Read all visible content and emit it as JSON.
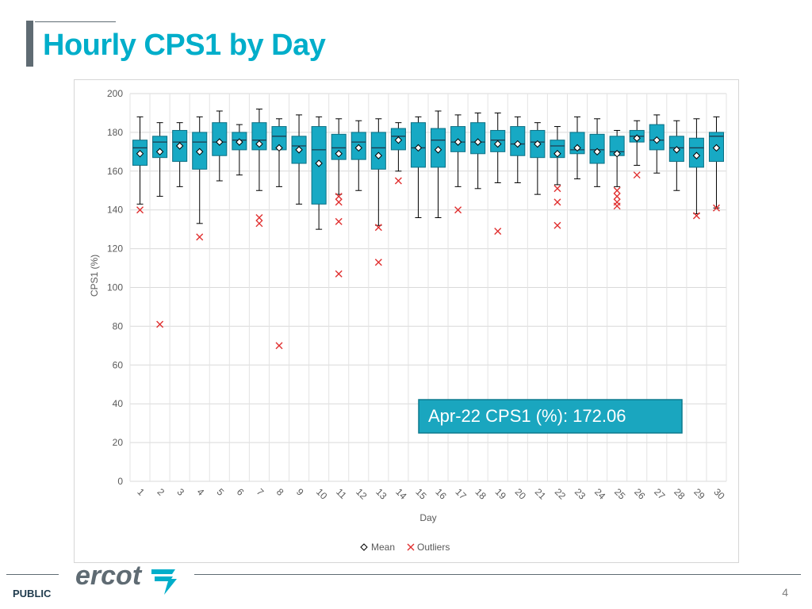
{
  "slide": {
    "title": "Hourly CPS1 by Day",
    "footer_label": "PUBLIC",
    "page_number": "4",
    "logo_text": "ercot"
  },
  "colors": {
    "title": "#00aeca",
    "box_fill": "#17a9c4",
    "box_edge": "#0d6f83",
    "outlier": "#e03030",
    "callout_fill": "#1aa6bf",
    "footer_line": "#5f6b73"
  },
  "chart_data": {
    "type": "box",
    "title": "",
    "xlabel": "Day",
    "ylabel": "CPS1 (%)",
    "ylim": [
      0,
      200
    ],
    "yticks": [
      0,
      20,
      40,
      60,
      80,
      100,
      120,
      140,
      160,
      180,
      200
    ],
    "grid": true,
    "legend_position": "bottom",
    "legend": {
      "mean_label": "Mean",
      "outlier_label": "Outliers"
    },
    "callout": "Apr-22 CPS1 (%): 172.06",
    "categories": [
      "1",
      "2",
      "3",
      "4",
      "5",
      "6",
      "7",
      "8",
      "9",
      "10",
      "11",
      "12",
      "13",
      "14",
      "15",
      "16",
      "17",
      "18",
      "19",
      "20",
      "21",
      "22",
      "23",
      "24",
      "25",
      "26",
      "27",
      "28",
      "29",
      "30"
    ],
    "series": [
      {
        "day": "1",
        "min": 143,
        "q1": 163,
        "median": 172,
        "q3": 176,
        "max": 188,
        "mean": 169,
        "outliers": [
          140
        ]
      },
      {
        "day": "2",
        "min": 147,
        "q1": 167,
        "median": 175,
        "q3": 178,
        "max": 185,
        "mean": 170,
        "outliers": [
          81
        ]
      },
      {
        "day": "3",
        "min": 152,
        "q1": 165,
        "median": 175,
        "q3": 181,
        "max": 185,
        "mean": 173,
        "outliers": []
      },
      {
        "day": "4",
        "min": 133,
        "q1": 161,
        "median": 175,
        "q3": 180,
        "max": 188,
        "mean": 170,
        "outliers": [
          126
        ]
      },
      {
        "day": "5",
        "min": 155,
        "q1": 168,
        "median": 175,
        "q3": 185,
        "max": 191,
        "mean": 175,
        "outliers": []
      },
      {
        "day": "6",
        "min": 158,
        "q1": 171,
        "median": 176,
        "q3": 180,
        "max": 184,
        "mean": 175,
        "outliers": []
      },
      {
        "day": "7",
        "min": 150,
        "q1": 171,
        "median": 176,
        "q3": 185,
        "max": 192,
        "mean": 174,
        "outliers": [
          136,
          133
        ]
      },
      {
        "day": "8",
        "min": 152,
        "q1": 171,
        "median": 178,
        "q3": 183,
        "max": 187,
        "mean": 172,
        "outliers": [
          70
        ]
      },
      {
        "day": "9",
        "min": 143,
        "q1": 164,
        "median": 173,
        "q3": 178,
        "max": 189,
        "mean": 171,
        "outliers": []
      },
      {
        "day": "10",
        "min": 130,
        "q1": 143,
        "median": 171,
        "q3": 183,
        "max": 188,
        "mean": 164,
        "outliers": []
      },
      {
        "day": "11",
        "min": 148,
        "q1": 166,
        "median": 172,
        "q3": 179,
        "max": 187,
        "mean": 169,
        "outliers": [
          147,
          144,
          134,
          107
        ]
      },
      {
        "day": "12",
        "min": 150,
        "q1": 166,
        "median": 175,
        "q3": 180,
        "max": 186,
        "mean": 172,
        "outliers": []
      },
      {
        "day": "13",
        "min": 132,
        "q1": 161,
        "median": 172,
        "q3": 180,
        "max": 187,
        "mean": 168,
        "outliers": [
          131,
          113
        ]
      },
      {
        "day": "14",
        "min": 160,
        "q1": 171,
        "median": 178,
        "q3": 182,
        "max": 185,
        "mean": 176,
        "outliers": [
          155
        ]
      },
      {
        "day": "15",
        "min": 136,
        "q1": 162,
        "median": 172,
        "q3": 185,
        "max": 188,
        "mean": 172,
        "outliers": []
      },
      {
        "day": "16",
        "min": 136,
        "q1": 162,
        "median": 176,
        "q3": 182,
        "max": 191,
        "mean": 171,
        "outliers": []
      },
      {
        "day": "17",
        "min": 152,
        "q1": 170,
        "median": 175,
        "q3": 183,
        "max": 189,
        "mean": 175,
        "outliers": [
          140
        ]
      },
      {
        "day": "18",
        "min": 151,
        "q1": 169,
        "median": 175,
        "q3": 185,
        "max": 190,
        "mean": 175,
        "outliers": []
      },
      {
        "day": "19",
        "min": 154,
        "q1": 170,
        "median": 176,
        "q3": 181,
        "max": 190,
        "mean": 174,
        "outliers": [
          129
        ]
      },
      {
        "day": "20",
        "min": 154,
        "q1": 168,
        "median": 174,
        "q3": 183,
        "max": 188,
        "mean": 174,
        "outliers": []
      },
      {
        "day": "21",
        "min": 148,
        "q1": 167,
        "median": 175,
        "q3": 181,
        "max": 185,
        "mean": 174,
        "outliers": []
      },
      {
        "day": "22",
        "min": 153,
        "q1": 167,
        "median": 173,
        "q3": 176,
        "max": 183,
        "mean": 169,
        "outliers": [
          151,
          144,
          132
        ]
      },
      {
        "day": "23",
        "min": 156,
        "q1": 169,
        "median": 171,
        "q3": 180,
        "max": 188,
        "mean": 172,
        "outliers": []
      },
      {
        "day": "24",
        "min": 152,
        "q1": 164,
        "median": 171,
        "q3": 179,
        "max": 187,
        "mean": 170,
        "outliers": []
      },
      {
        "day": "25",
        "min": 152,
        "q1": 168,
        "median": 170,
        "q3": 178,
        "max": 181,
        "mean": 169,
        "outliers": [
          150,
          147,
          144,
          142
        ]
      },
      {
        "day": "26",
        "min": 163,
        "q1": 175,
        "median": 178,
        "q3": 181,
        "max": 186,
        "mean": 177,
        "outliers": [
          158
        ]
      },
      {
        "day": "27",
        "min": 159,
        "q1": 171,
        "median": 176,
        "q3": 184,
        "max": 189,
        "mean": 176,
        "outliers": []
      },
      {
        "day": "28",
        "min": 150,
        "q1": 165,
        "median": 172,
        "q3": 178,
        "max": 186,
        "mean": 171,
        "outliers": []
      },
      {
        "day": "29",
        "min": 138,
        "q1": 162,
        "median": 172,
        "q3": 177,
        "max": 187,
        "mean": 168,
        "outliers": [
          137
        ]
      },
      {
        "day": "30",
        "min": 141,
        "q1": 165,
        "median": 178,
        "q3": 180,
        "max": 188,
        "mean": 172,
        "outliers": [
          141
        ]
      }
    ]
  }
}
